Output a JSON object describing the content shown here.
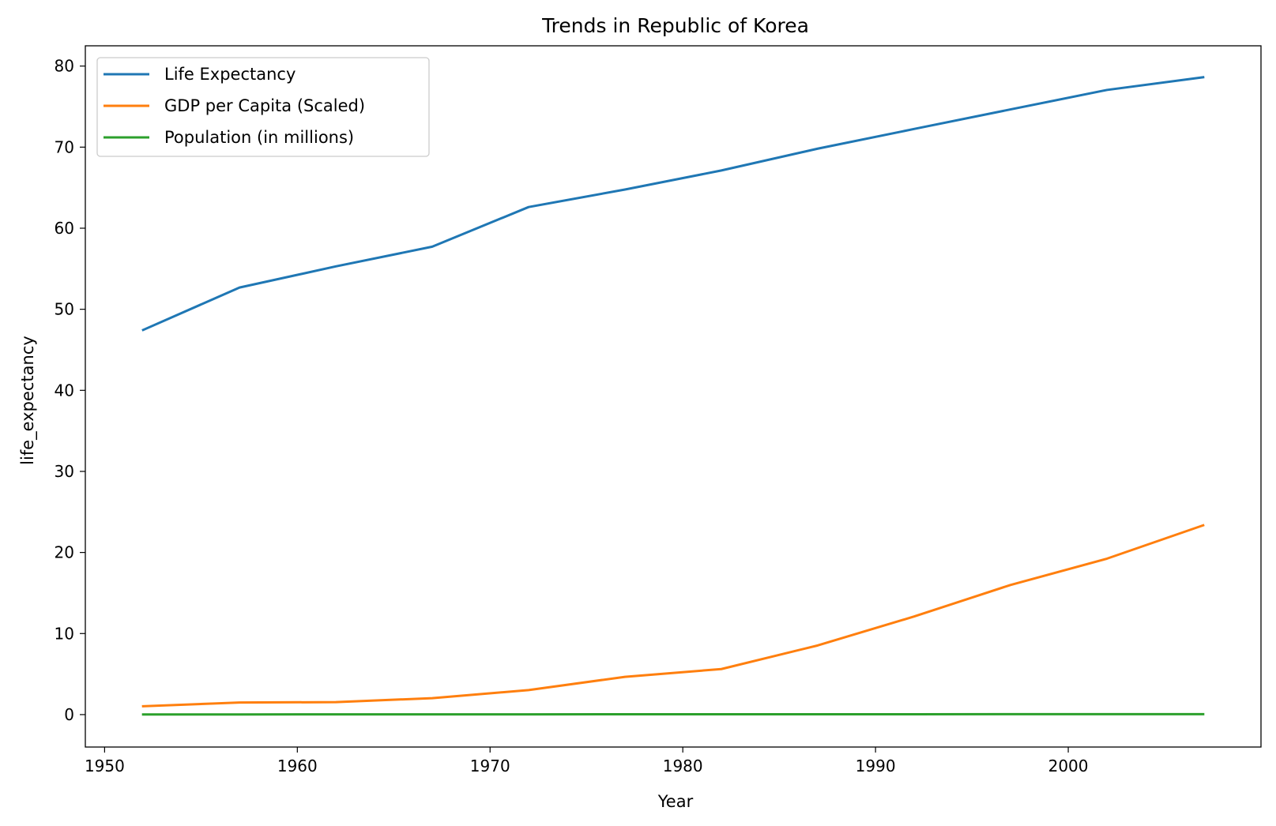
{
  "chart_data": {
    "type": "line",
    "title": "Trends in Republic of Korea",
    "xlabel": "Year",
    "ylabel": "life_expectancy",
    "xlim": [
      1949,
      2010
    ],
    "ylim": [
      -4,
      82.5
    ],
    "x_ticks": [
      1950,
      1960,
      1970,
      1980,
      1990,
      2000
    ],
    "y_ticks": [
      0,
      10,
      20,
      30,
      40,
      50,
      60,
      70,
      80
    ],
    "grid": false,
    "legend_position": "top-left",
    "x": [
      1952,
      1957,
      1962,
      1967,
      1972,
      1977,
      1982,
      1987,
      1992,
      1997,
      2002,
      2007
    ],
    "series": [
      {
        "name": "Life Expectancy",
        "color": "#1f77b4",
        "values": [
          47.45,
          52.68,
          55.29,
          57.72,
          62.61,
          64.77,
          67.12,
          69.81,
          72.24,
          74.65,
          77.05,
          78.62
        ]
      },
      {
        "name": "GDP per Capita (Scaled)",
        "color": "#ff7f0e",
        "values": [
          1.03,
          1.49,
          1.54,
          2.03,
          3.03,
          4.66,
          5.62,
          8.53,
          12.1,
          15.99,
          19.23,
          23.35
        ]
      },
      {
        "name": "Population (in millions)",
        "color": "#2ca02c",
        "values": [
          0.02,
          0.02,
          0.03,
          0.03,
          0.03,
          0.04,
          0.04,
          0.04,
          0.04,
          0.05,
          0.05,
          0.05
        ]
      }
    ]
  }
}
